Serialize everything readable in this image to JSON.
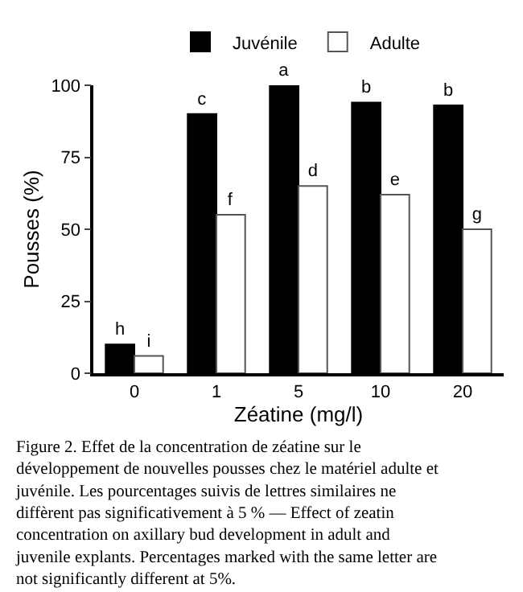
{
  "chart_data": {
    "type": "bar",
    "xlabel": "Zéatine (mg/l)",
    "ylabel": "Pousses (%)",
    "categories": [
      "0",
      "1",
      "5",
      "10",
      "20"
    ],
    "series": [
      {
        "name": "Juvénile",
        "color": "#000000",
        "values": [
          10,
          90,
          100,
          94,
          93
        ],
        "value_labels": [
          "h",
          "c",
          "a",
          "b",
          "b"
        ]
      },
      {
        "name": "Adulte",
        "color": "#ffffff",
        "values": [
          6,
          55,
          65,
          62,
          50
        ],
        "value_labels": [
          "i",
          "f",
          "d",
          "e",
          "g"
        ]
      }
    ],
    "ylim": [
      0,
      100
    ],
    "yticks": [
      0,
      25,
      50,
      75,
      100
    ],
    "legend": "top",
    "annotations": [
      "Figure 2. Effet de la concentration de zéatine sur le développement de nouvelles pousses chez le matériel adulte et juvénile. Les pourcentages suivis de lettres similaires ne diffèrent pas significativement à 5 % — Effect of zeatin concentration on axillary bud development in adult and juvenile explants. Percentages marked with the same letter are not significantly different at 5%."
    ]
  }
}
